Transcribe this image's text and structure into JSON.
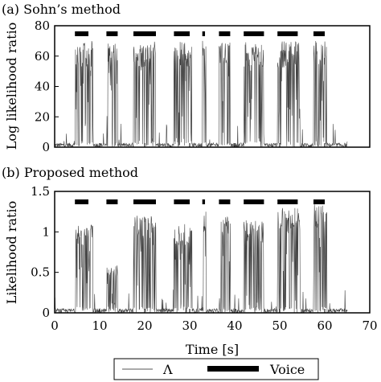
{
  "chart_data": [
    {
      "type": "line",
      "panel_label": "(a) Sohn’s method",
      "ylabel": "Log likelihood ratio",
      "xlim": [
        0,
        70
      ],
      "ylim": [
        0,
        80
      ],
      "yticks": [
        0,
        20,
        40,
        60,
        80
      ],
      "ytick_labels": [
        "0",
        "20",
        "40",
        "60",
        "80"
      ],
      "signal_end": 65,
      "bursts": [
        {
          "start": 4.5,
          "end": 8.5,
          "peak": 70
        },
        {
          "start": 11.5,
          "end": 14.0,
          "peak": 70
        },
        {
          "start": 17.5,
          "end": 22.5,
          "peak": 70
        },
        {
          "start": 26.5,
          "end": 30.5,
          "peak": 70
        },
        {
          "start": 32.8,
          "end": 33.6,
          "peak": 70
        },
        {
          "start": 36.5,
          "end": 39.0,
          "peak": 70
        },
        {
          "start": 42.0,
          "end": 46.5,
          "peak": 70
        },
        {
          "start": 49.5,
          "end": 54.5,
          "peak": 70
        },
        {
          "start": 57.5,
          "end": 60.5,
          "peak": 70
        }
      ],
      "voice_segments": [
        [
          4.5,
          7.5
        ],
        [
          11.5,
          14.0
        ],
        [
          17.5,
          22.5
        ],
        [
          26.5,
          30.0
        ],
        [
          32.8,
          33.4
        ],
        [
          36.5,
          39.0
        ],
        [
          42.0,
          46.5
        ],
        [
          49.5,
          54.0
        ],
        [
          57.5,
          60.0
        ]
      ]
    },
    {
      "type": "line",
      "panel_label": "(b) Proposed method",
      "ylabel": "Likelihood ratio",
      "xlabel": "Time [s]",
      "xlim": [
        0,
        70
      ],
      "ylim": [
        0,
        1.5
      ],
      "xticks": [
        0,
        10,
        20,
        30,
        40,
        50,
        60,
        70
      ],
      "xtick_labels": [
        "0",
        "10",
        "20",
        "30",
        "40",
        "50",
        "60",
        "70"
      ],
      "yticks": [
        0,
        0.5,
        1,
        1.5
      ],
      "ytick_labels": [
        "0",
        "0.5",
        "1",
        "1.5"
      ],
      "signal_end": 65,
      "bursts": [
        {
          "start": 4.5,
          "end": 8.5,
          "peak": 1.1
        },
        {
          "start": 11.5,
          "end": 14.0,
          "peak": 0.6
        },
        {
          "start": 17.5,
          "end": 22.5,
          "peak": 1.2
        },
        {
          "start": 26.5,
          "end": 30.5,
          "peak": 1.1
        },
        {
          "start": 32.8,
          "end": 33.6,
          "peak": 1.25
        },
        {
          "start": 36.5,
          "end": 39.0,
          "peak": 1.3
        },
        {
          "start": 42.0,
          "end": 46.5,
          "peak": 1.15
        },
        {
          "start": 49.5,
          "end": 54.5,
          "peak": 1.3
        },
        {
          "start": 57.5,
          "end": 60.5,
          "peak": 1.35
        }
      ],
      "voice_segments": [
        [
          4.5,
          7.5
        ],
        [
          11.5,
          14.0
        ],
        [
          17.5,
          22.5
        ],
        [
          26.5,
          30.0
        ],
        [
          32.8,
          33.4
        ],
        [
          36.5,
          39.0
        ],
        [
          42.0,
          46.5
        ],
        [
          49.5,
          54.0
        ],
        [
          57.5,
          60.0
        ]
      ]
    }
  ],
  "legend": {
    "line_label": "Λ",
    "bar_label": "Voice",
    "placement": "bottom"
  }
}
